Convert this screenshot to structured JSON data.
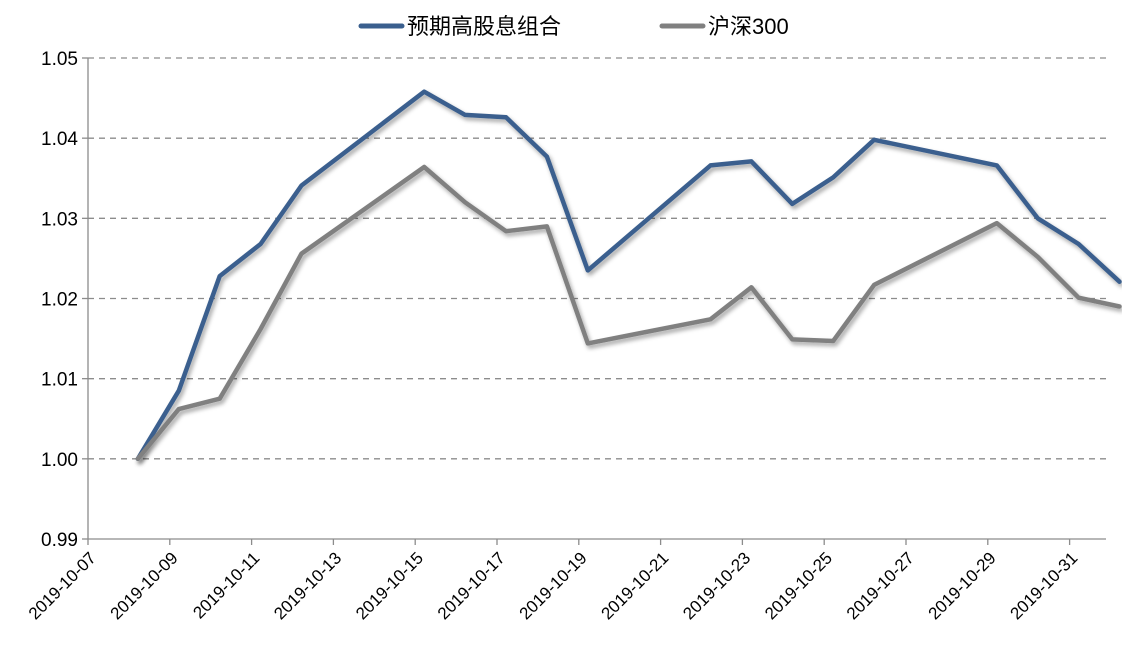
{
  "chart_data": {
    "type": "line",
    "title": "",
    "xlabel": "",
    "ylabel": "",
    "ylim": [
      0.99,
      1.05
    ],
    "grid": "horizontal dashed",
    "legend_position": "top-center",
    "y_ticks": [
      "0.99",
      "1.00",
      "1.01",
      "1.02",
      "1.03",
      "1.04",
      "1.05"
    ],
    "x_tick_labels": [
      "2019-10-07",
      "2019-10-09",
      "2019-10-11",
      "2019-10-13",
      "2019-10-15",
      "2019-10-17",
      "2019-10-19",
      "2019-10-21",
      "2019-10-23",
      "2019-10-25",
      "2019-10-27",
      "2019-10-29",
      "2019-10-31"
    ],
    "x": [
      "2019-10-08",
      "2019-10-09",
      "2019-10-10",
      "2019-10-11",
      "2019-10-12",
      "2019-10-15",
      "2019-10-16",
      "2019-10-17",
      "2019-10-18",
      "2019-10-19",
      "2019-10-22",
      "2019-10-23",
      "2019-10-24",
      "2019-10-25",
      "2019-10-26",
      "2019-10-29",
      "2019-10-30",
      "2019-10-31",
      "2019-11-01"
    ],
    "series": [
      {
        "name": "预期高股息组合",
        "color": "#3A5F8E",
        "values": [
          1.0,
          1.0085,
          1.0228,
          1.0268,
          1.0341,
          1.0458,
          1.0429,
          1.0426,
          1.0377,
          1.0235,
          1.0366,
          1.0371,
          1.0318,
          1.0351,
          1.0398,
          1.0366,
          1.03,
          1.0268,
          1.0221
        ]
      },
      {
        "name": "沪深300",
        "color": "#808080",
        "values": [
          1.0,
          1.0062,
          1.0075,
          1.0162,
          1.0256,
          1.0364,
          1.032,
          1.0284,
          1.029,
          1.0144,
          1.0174,
          1.0214,
          1.0149,
          1.0147,
          1.0217,
          1.0294,
          1.0252,
          1.0201,
          1.019
        ]
      }
    ]
  }
}
